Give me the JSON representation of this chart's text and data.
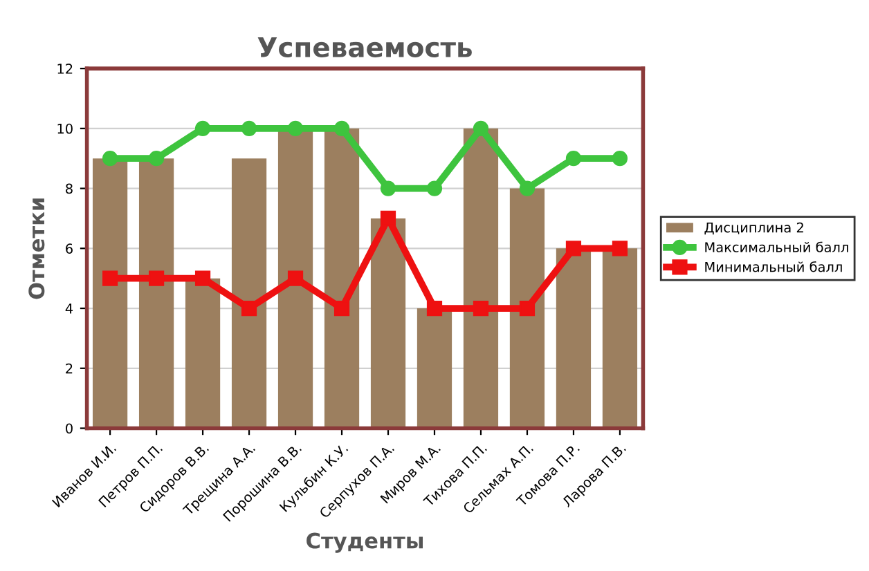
{
  "chart_data": {
    "type": "bar",
    "title": "Успеваемость",
    "xlabel": "Студенты",
    "ylabel": "Отметки",
    "categories": [
      "Иванов И.И.",
      "Петров П.П.",
      "Сидоров В.В.",
      "Трещина А.А.",
      "Порошина В.В.",
      "Кульбин К.У.",
      "Серпухов П.А.",
      "Миров М.А.",
      "Тихова П.П.",
      "Сельмах А.П.",
      "Томова П.Р.",
      "Ларова П.В."
    ],
    "series": [
      {
        "name": "Дисциплина 2",
        "color": "#9c7f5f",
        "values": [
          9,
          9,
          5,
          9,
          10,
          10,
          7,
          4,
          10,
          8,
          6,
          6
        ]
      },
      {
        "name": "Максимальный балл",
        "type": "line",
        "color": "#3ec43e",
        "marker": "circle",
        "values": [
          9,
          9,
          10,
          10,
          10,
          10,
          8,
          8,
          10,
          8,
          9,
          9
        ]
      },
      {
        "name": "Минимальный балл",
        "type": "line",
        "color": "#ee1111",
        "marker": "square",
        "values": [
          5,
          5,
          5,
          4,
          5,
          4,
          7,
          4,
          4,
          4,
          6,
          6
        ]
      }
    ],
    "ylim": [
      0,
      12
    ],
    "yticks": [
      0,
      2,
      4,
      6,
      8,
      10,
      12
    ],
    "grid": "y",
    "legend": "right"
  }
}
